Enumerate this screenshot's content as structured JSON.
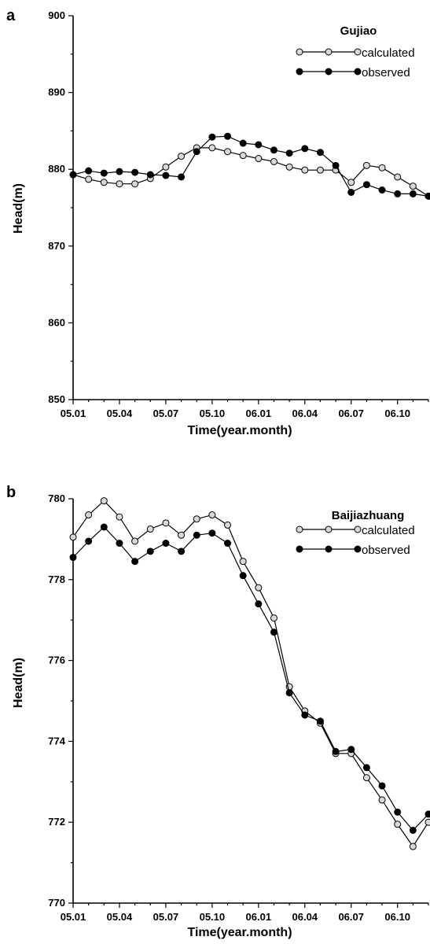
{
  "chart_data": [
    {
      "type": "line",
      "panel_label": "a",
      "site": "Gujiao",
      "xlabel": "Time(year.month)",
      "ylabel": "Head(m)",
      "ylim": [
        850,
        900
      ],
      "yticks": [
        850,
        860,
        870,
        880,
        890,
        900
      ],
      "x_tick_labels": [
        "05.01",
        "05.04",
        "05.07",
        "05.10",
        "06.01",
        "06.04",
        "06.07",
        "06.10"
      ],
      "x": [
        1,
        2,
        3,
        4,
        5,
        6,
        7,
        8,
        9,
        10,
        11,
        12,
        13,
        14,
        15,
        16,
        17,
        18,
        19,
        20,
        21,
        22,
        23,
        24
      ],
      "series": [
        {
          "name": "calculated",
          "marker": "open",
          "values": [
            879.3,
            878.7,
            878.3,
            878.1,
            878.1,
            878.8,
            880.3,
            881.7,
            882.8,
            882.8,
            882.3,
            881.8,
            881.4,
            881.0,
            880.3,
            879.9,
            879.9,
            879.9,
            878.3,
            880.5,
            880.2,
            879.0,
            877.8,
            876.5
          ]
        },
        {
          "name": "observed",
          "marker": "filled",
          "values": [
            879.3,
            879.8,
            879.5,
            879.7,
            879.6,
            879.3,
            879.2,
            879.0,
            882.3,
            884.2,
            884.3,
            883.4,
            883.2,
            882.5,
            882.1,
            882.7,
            882.2,
            880.5,
            877.0,
            878.0,
            877.3,
            876.8,
            876.8,
            876.5
          ]
        }
      ],
      "colors": {
        "line": "#000000",
        "open_fill": "#d8d8d8",
        "filled": "#000000"
      }
    },
    {
      "type": "line",
      "panel_label": "b",
      "site": "Baijiazhuang",
      "xlabel": "Time(year.month)",
      "ylabel": "Head(m)",
      "ylim": [
        770,
        780
      ],
      "yticks": [
        770,
        772,
        774,
        776,
        778,
        780
      ],
      "x_tick_labels": [
        "05.01",
        "05.04",
        "05.07",
        "05.10",
        "06.01",
        "06.04",
        "06.07",
        "06.10"
      ],
      "x": [
        1,
        2,
        3,
        4,
        5,
        6,
        7,
        8,
        9,
        10,
        11,
        12,
        13,
        14,
        15,
        16,
        17,
        18,
        19,
        20,
        21,
        22,
        23,
        24
      ],
      "series": [
        {
          "name": "calculated",
          "marker": "open",
          "values": [
            779.05,
            779.6,
            779.95,
            779.55,
            778.95,
            779.25,
            779.4,
            779.1,
            779.5,
            779.6,
            779.35,
            778.45,
            777.8,
            777.05,
            775.35,
            774.75,
            774.45,
            773.7,
            773.7,
            773.1,
            772.55,
            771.95,
            771.4,
            772.0
          ]
        },
        {
          "name": "observed",
          "marker": "filled",
          "values": [
            778.55,
            778.95,
            779.3,
            778.9,
            778.45,
            778.7,
            778.9,
            778.7,
            779.1,
            779.15,
            778.9,
            778.1,
            777.4,
            776.7,
            775.2,
            774.65,
            774.5,
            773.75,
            773.8,
            773.35,
            772.9,
            772.25,
            771.8,
            772.2
          ]
        }
      ],
      "colors": {
        "line": "#000000",
        "open_fill": "#d8d8d8",
        "filled": "#000000"
      }
    }
  ]
}
